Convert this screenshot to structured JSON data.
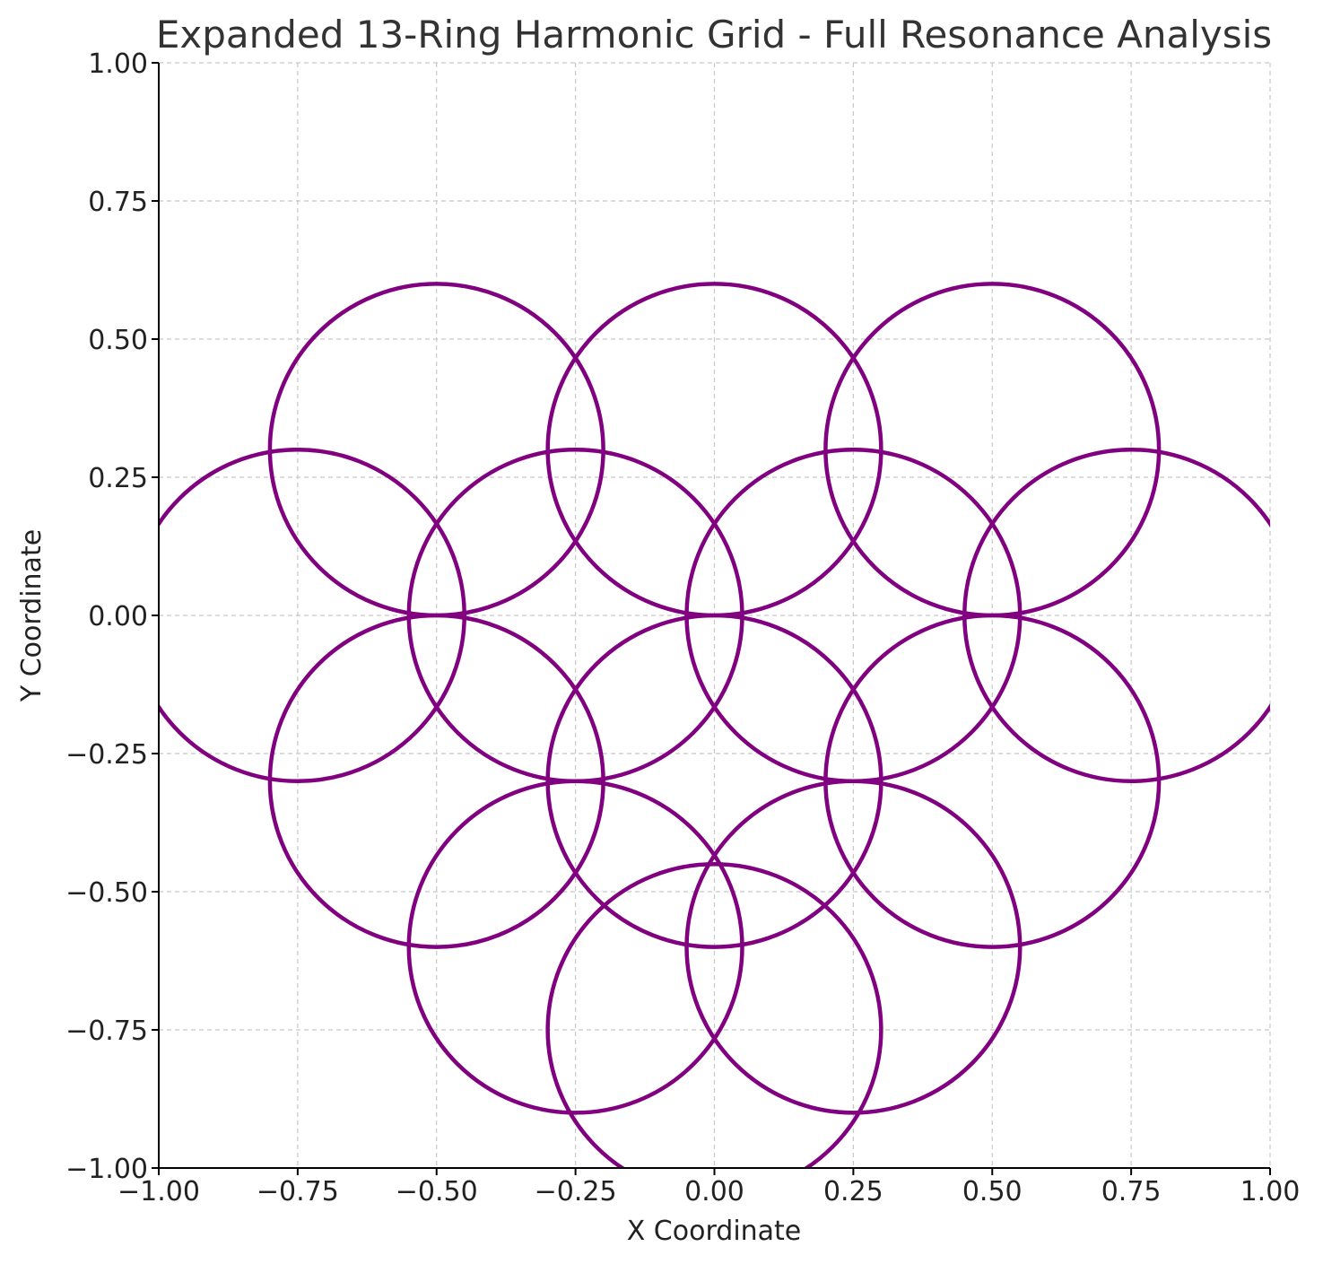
{
  "chart_data": {
    "type": "line",
    "title": "Expanded 13-Ring Harmonic Grid - Full Resonance Analysis",
    "xlabel": "X Coordinate",
    "ylabel": "Y Coordinate",
    "xlim": [
      -1.0,
      1.0
    ],
    "ylim": [
      -1.0,
      1.0
    ],
    "xticks": [
      -1.0,
      -0.75,
      -0.5,
      -0.25,
      0.0,
      0.25,
      0.5,
      0.75,
      1.0
    ],
    "yticks": [
      -1.0,
      -0.75,
      -0.5,
      -0.25,
      0.0,
      0.25,
      0.5,
      0.75,
      1.0
    ],
    "xtick_labels": [
      "−1.00",
      "−0.75",
      "−0.50",
      "−0.25",
      "0.00",
      "0.25",
      "0.50",
      "0.75",
      "1.00"
    ],
    "ytick_labels": [
      "−1.00",
      "−0.75",
      "−0.50",
      "−0.25",
      "0.00",
      "0.25",
      "0.50",
      "0.75",
      "1.00"
    ],
    "grid": true,
    "ring_color": "#800080",
    "ring_radius": 0.3,
    "rings": [
      {
        "cx": -0.5,
        "cy": 0.3
      },
      {
        "cx": 0.0,
        "cy": 0.3
      },
      {
        "cx": 0.5,
        "cy": 0.3
      },
      {
        "cx": -0.75,
        "cy": 0.0
      },
      {
        "cx": -0.25,
        "cy": 0.0
      },
      {
        "cx": 0.25,
        "cy": 0.0
      },
      {
        "cx": 0.75,
        "cy": 0.0
      },
      {
        "cx": -0.5,
        "cy": -0.3
      },
      {
        "cx": 0.0,
        "cy": -0.3
      },
      {
        "cx": 0.5,
        "cy": -0.3
      },
      {
        "cx": -0.25,
        "cy": -0.6
      },
      {
        "cx": 0.25,
        "cy": -0.6
      },
      {
        "cx": 0.0,
        "cy": -0.75
      }
    ]
  }
}
